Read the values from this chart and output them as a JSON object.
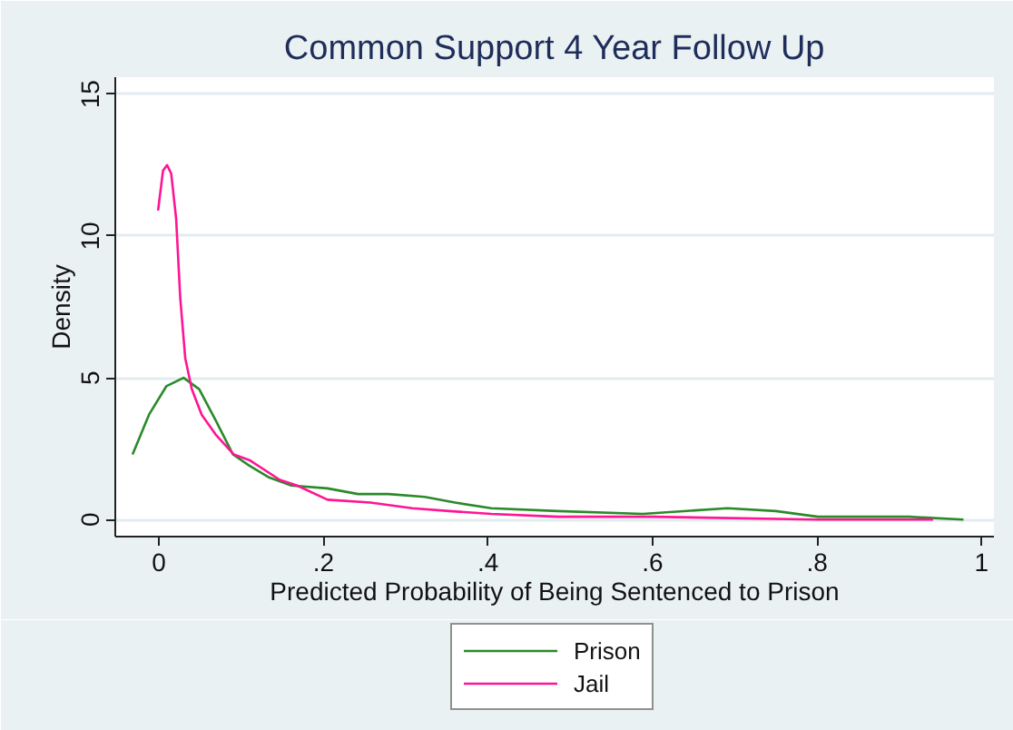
{
  "chart_data": {
    "type": "line",
    "title": "Common Support 4 Year Follow Up",
    "xlabel": "Predicted Probability of Being Sentenced to Prison",
    "ylabel": "Density",
    "xlim": [
      -0.053,
      1.015
    ],
    "ylim": [
      -0.6,
      15.6
    ],
    "xticks": [
      0,
      {
        "value": 0.2,
        "label": ".2"
      },
      {
        "value": 0.4,
        "label": ".4"
      },
      {
        "value": 0.6,
        "label": ".6"
      },
      {
        "value": 0.8,
        "label": ".8"
      },
      1
    ],
    "yticks": [
      0,
      5,
      10,
      15
    ],
    "grid": "y",
    "legend": "bottom",
    "line_style": "solid",
    "series": [
      {
        "name": "Prison",
        "color": "#2a8a2a",
        "x": [
          -0.032,
          -0.012,
          0.009,
          0.03,
          0.049,
          0.069,
          0.09,
          0.11,
          0.133,
          0.161,
          0.205,
          0.242,
          0.279,
          0.323,
          0.36,
          0.404,
          0.485,
          0.588,
          0.691,
          0.75,
          0.801,
          0.912,
          0.978
        ],
        "values": [
          2.3,
          3.7,
          4.7,
          5.0,
          4.6,
          3.5,
          2.3,
          1.9,
          1.5,
          1.2,
          1.1,
          0.9,
          0.9,
          0.8,
          0.6,
          0.4,
          0.3,
          0.2,
          0.4,
          0.3,
          0.1,
          0.1,
          0.0
        ]
      },
      {
        "name": "Jail",
        "color": "#ff1493",
        "x": [
          -0.001,
          0.005,
          0.01,
          0.015,
          0.021,
          0.026,
          0.032,
          0.04,
          0.052,
          0.069,
          0.091,
          0.11,
          0.147,
          0.168,
          0.205,
          0.257,
          0.308,
          0.353,
          0.404,
          0.485,
          0.6,
          0.8,
          0.941
        ],
        "values": [
          10.9,
          12.3,
          12.5,
          12.2,
          10.6,
          7.8,
          5.7,
          4.6,
          3.7,
          3.0,
          2.3,
          2.1,
          1.4,
          1.2,
          0.7,
          0.6,
          0.4,
          0.3,
          0.2,
          0.1,
          0.1,
          0.0,
          0.0
        ]
      }
    ]
  }
}
